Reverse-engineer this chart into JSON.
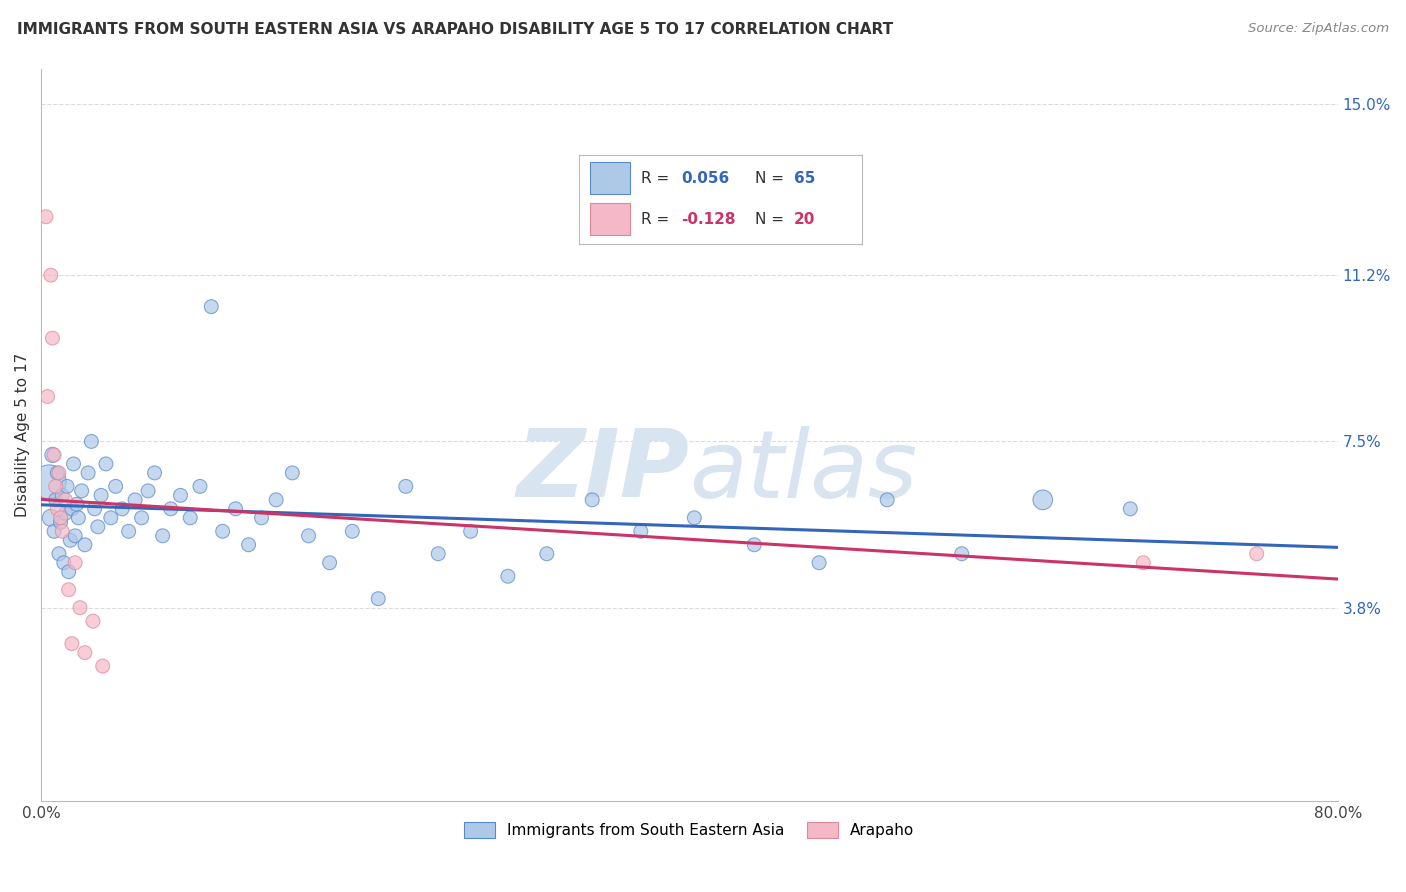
{
  "title": "IMMIGRANTS FROM SOUTH EASTERN ASIA VS ARAPAHO DISABILITY AGE 5 TO 17 CORRELATION CHART",
  "source": "Source: ZipAtlas.com",
  "ylabel": "Disability Age 5 to 17",
  "xlim": [
    0.0,
    0.8
  ],
  "ylim": [
    -0.005,
    0.158
  ],
  "yticks": [
    0.038,
    0.075,
    0.112,
    0.15
  ],
  "ytick_labels": [
    "3.8%",
    "7.5%",
    "11.2%",
    "15.0%"
  ],
  "xticks": [
    0.0,
    0.1,
    0.2,
    0.3,
    0.4,
    0.5,
    0.6,
    0.7,
    0.8
  ],
  "xtick_labels": [
    "0.0%",
    "",
    "",
    "",
    "",
    "",
    "",
    "",
    "80.0%"
  ],
  "blue_R": "0.056",
  "blue_N": "65",
  "pink_R": "-0.128",
  "pink_N": "20",
  "blue_fill": "#aec8e8",
  "pink_fill": "#f4b8c8",
  "blue_edge": "#5588cc",
  "pink_edge": "#e08898",
  "blue_line_color": "#3366bb",
  "pink_line_color": "#cc3366",
  "watermark_color": "#d8e4f0",
  "background_color": "#ffffff",
  "grid_color": "#cccccc",
  "blue_scatter_x": [
    0.005,
    0.006,
    0.007,
    0.008,
    0.009,
    0.01,
    0.011,
    0.012,
    0.013,
    0.014,
    0.015,
    0.016,
    0.017,
    0.018,
    0.019,
    0.02,
    0.021,
    0.022,
    0.023,
    0.025,
    0.027,
    0.029,
    0.031,
    0.033,
    0.035,
    0.037,
    0.04,
    0.043,
    0.046,
    0.05,
    0.054,
    0.058,
    0.062,
    0.066,
    0.07,
    0.075,
    0.08,
    0.086,
    0.092,
    0.098,
    0.105,
    0.112,
    0.12,
    0.128,
    0.136,
    0.145,
    0.155,
    0.165,
    0.178,
    0.192,
    0.208,
    0.225,
    0.245,
    0.265,
    0.288,
    0.312,
    0.34,
    0.37,
    0.403,
    0.44,
    0.48,
    0.522,
    0.568,
    0.618,
    0.672
  ],
  "blue_scatter_y": [
    0.066,
    0.058,
    0.072,
    0.055,
    0.062,
    0.068,
    0.05,
    0.057,
    0.063,
    0.048,
    0.059,
    0.065,
    0.046,
    0.053,
    0.06,
    0.07,
    0.054,
    0.061,
    0.058,
    0.064,
    0.052,
    0.068,
    0.075,
    0.06,
    0.056,
    0.063,
    0.07,
    0.058,
    0.065,
    0.06,
    0.055,
    0.062,
    0.058,
    0.064,
    0.068,
    0.054,
    0.06,
    0.063,
    0.058,
    0.065,
    0.105,
    0.055,
    0.06,
    0.052,
    0.058,
    0.062,
    0.068,
    0.054,
    0.048,
    0.055,
    0.04,
    0.065,
    0.05,
    0.055,
    0.045,
    0.05,
    0.062,
    0.055,
    0.058,
    0.052,
    0.048,
    0.062,
    0.05,
    0.062,
    0.06
  ],
  "blue_scatter_sizes": [
    600,
    150,
    120,
    100,
    100,
    100,
    100,
    100,
    100,
    100,
    100,
    100,
    100,
    100,
    100,
    100,
    100,
    100,
    100,
    100,
    100,
    100,
    100,
    100,
    100,
    100,
    100,
    100,
    100,
    100,
    100,
    100,
    100,
    100,
    100,
    100,
    100,
    100,
    100,
    100,
    100,
    100,
    100,
    100,
    100,
    100,
    100,
    100,
    100,
    100,
    100,
    100,
    100,
    100,
    100,
    100,
    100,
    100,
    100,
    100,
    100,
    100,
    100,
    200,
    100
  ],
  "pink_scatter_x": [
    0.003,
    0.004,
    0.006,
    0.007,
    0.008,
    0.009,
    0.01,
    0.011,
    0.012,
    0.013,
    0.015,
    0.017,
    0.019,
    0.021,
    0.024,
    0.027,
    0.032,
    0.038,
    0.68,
    0.75
  ],
  "pink_scatter_y": [
    0.125,
    0.085,
    0.112,
    0.098,
    0.072,
    0.065,
    0.06,
    0.068,
    0.058,
    0.055,
    0.062,
    0.042,
    0.03,
    0.048,
    0.038,
    0.028,
    0.035,
    0.025,
    0.048,
    0.05
  ],
  "pink_scatter_sizes": [
    100,
    100,
    100,
    100,
    100,
    100,
    100,
    100,
    100,
    100,
    100,
    100,
    100,
    100,
    100,
    100,
    100,
    100,
    100,
    100
  ]
}
